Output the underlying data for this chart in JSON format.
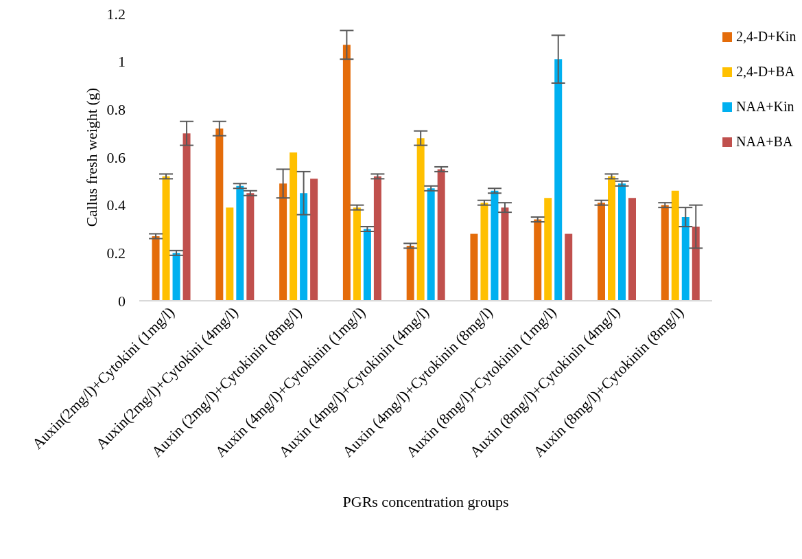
{
  "chart_data": {
    "type": "bar",
    "xlabel": "PGRs concentration groups",
    "ylabel": "Callus  fresh weight (g)",
    "categories": [
      "Auxin(2mg/l)+Cytokini (1mg/l)",
      "Auxin(2mg/l)+Cytokini (4mg/l)",
      "Auxin (2mg/l)+Cytokinin (8mg/l)",
      "Auxin (4mg/l)+Cytokinin (1mg/l)",
      "Auxin (4mg/l)+Cytokinin (4mg/l)",
      "Auxin (4mg/l)+Cytokinin (8mg/l)",
      "Auxin (8mg/l)+Cytokinin (1mg/l)",
      "Auxin (8mg/l)+Cytokinin (4mg/l)",
      "Auxin (8mg/l)+Cytokinin (8mg/l)"
    ],
    "series": [
      {
        "name": "2,4-D+Kin",
        "color": "#e46c0a",
        "values": [
          0.27,
          0.72,
          0.49,
          1.07,
          0.23,
          0.28,
          0.34,
          0.41,
          0.4
        ],
        "errors": [
          0.01,
          0.03,
          0.06,
          0.06,
          0.01,
          null,
          0.01,
          0.01,
          0.01
        ]
      },
      {
        "name": "2,4-D+BA",
        "color": "#ffc000",
        "values": [
          0.52,
          0.39,
          0.62,
          0.39,
          0.68,
          0.41,
          0.43,
          0.52,
          0.46
        ],
        "errors": [
          0.01,
          null,
          null,
          0.01,
          0.03,
          0.01,
          null,
          0.01,
          null
        ]
      },
      {
        "name": "NAA+Kin",
        "color": "#00b0f0",
        "values": [
          0.2,
          0.48,
          0.45,
          0.3,
          0.47,
          0.46,
          1.01,
          0.49,
          0.35
        ],
        "errors": [
          0.01,
          0.01,
          0.09,
          0.01,
          0.01,
          0.01,
          0.1,
          0.01,
          0.04
        ]
      },
      {
        "name": "NAA+BA",
        "color": "#c0504d",
        "values": [
          0.7,
          0.45,
          0.51,
          0.52,
          0.55,
          0.39,
          0.28,
          0.43,
          0.31
        ],
        "errors": [
          0.05,
          0.01,
          null,
          0.01,
          0.01,
          0.02,
          null,
          null,
          0.09
        ]
      }
    ],
    "ylim": [
      0,
      1.2
    ],
    "yticks": [
      0,
      0.2,
      0.4,
      0.6,
      0.8,
      1,
      1.2
    ],
    "grid": false,
    "legend": "top right"
  }
}
